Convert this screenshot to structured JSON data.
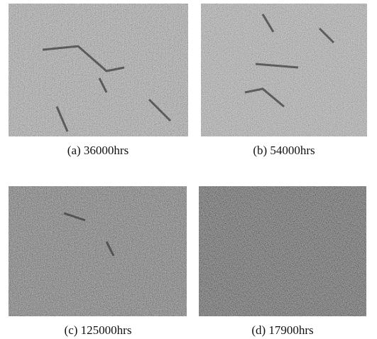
{
  "panels": [
    {
      "caption": "(a) 36000hrs"
    },
    {
      "caption": "(b) 54000hrs"
    },
    {
      "caption": "(c) 125000hrs"
    },
    {
      "caption": "(d) 17900hrs"
    }
  ]
}
